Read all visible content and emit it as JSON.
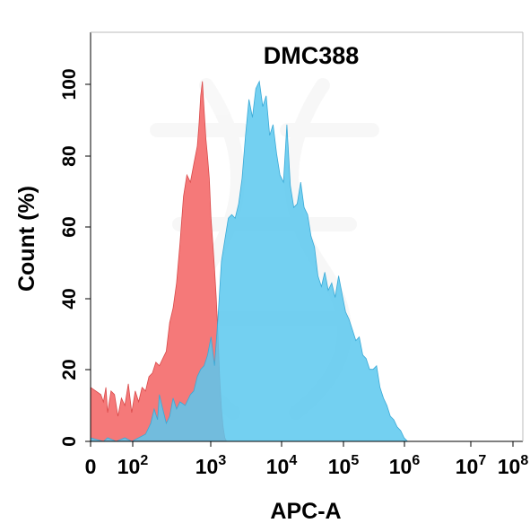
{
  "chart_data": {
    "type": "area",
    "title": "DMC388",
    "xlabel": "APC-A",
    "ylabel": "Count  (%)",
    "x_scale": "log (biexponential, 0 at left)",
    "ylim": [
      0,
      100
    ],
    "grid": false,
    "legend": "none",
    "y_ticks": [
      "0",
      "20",
      "40",
      "60",
      "80",
      "100"
    ],
    "x_ticks": [
      {
        "base": "0",
        "exp": ""
      },
      {
        "base": "10",
        "exp": "2"
      },
      {
        "base": "10",
        "exp": "3"
      },
      {
        "base": "10",
        "exp": "4"
      },
      {
        "base": "10",
        "exp": "5"
      },
      {
        "base": "10",
        "exp": "6"
      },
      {
        "base": "10",
        "exp": "7"
      },
      {
        "base": "10",
        "exp": "8"
      }
    ],
    "series": [
      {
        "color": "#f46a6a",
        "opacity": 0.9,
        "points": [
          [
            0,
            15
          ],
          [
            1.2,
            13
          ],
          [
            1.5,
            11
          ],
          [
            1.8,
            15
          ],
          [
            2.0,
            8
          ],
          [
            2.2,
            14
          ],
          [
            2.4,
            13
          ],
          [
            2.6,
            7
          ],
          [
            2.8,
            12
          ],
          [
            3.0,
            10
          ],
          [
            3.2,
            16
          ],
          [
            3.4,
            8
          ],
          [
            3.6,
            14
          ],
          [
            3.8,
            11
          ],
          [
            4.0,
            15
          ],
          [
            4.2,
            14
          ],
          [
            4.4,
            18
          ],
          [
            4.6,
            19
          ],
          [
            4.8,
            22
          ],
          [
            5.0,
            21
          ],
          [
            5.2,
            23
          ],
          [
            5.4,
            25
          ],
          [
            5.6,
            33
          ],
          [
            5.8,
            37
          ],
          [
            6.0,
            44
          ],
          [
            6.2,
            55
          ],
          [
            6.4,
            68
          ],
          [
            6.6,
            74
          ],
          [
            6.8,
            72
          ],
          [
            7.0,
            77
          ],
          [
            7.2,
            82
          ],
          [
            7.3,
            88
          ],
          [
            7.4,
            96
          ],
          [
            7.5,
            100
          ],
          [
            7.6,
            92
          ],
          [
            7.7,
            84
          ],
          [
            7.8,
            79
          ],
          [
            7.9,
            73
          ],
          [
            8.0,
            62
          ],
          [
            8.1,
            55
          ],
          [
            8.2,
            48
          ],
          [
            8.3,
            40
          ],
          [
            8.4,
            30
          ],
          [
            8.5,
            18
          ],
          [
            8.6,
            9
          ],
          [
            8.7,
            4
          ],
          [
            8.8,
            1
          ],
          [
            8.9,
            0
          ]
        ]
      },
      {
        "color": "#5bc8ef",
        "opacity": 0.85,
        "points": [
          [
            0,
            1
          ],
          [
            1.5,
            0
          ],
          [
            2.0,
            1
          ],
          [
            2.5,
            0
          ],
          [
            3.0,
            1
          ],
          [
            3.4,
            0
          ],
          [
            3.8,
            1
          ],
          [
            4.2,
            2
          ],
          [
            4.5,
            5
          ],
          [
            4.7,
            9
          ],
          [
            4.9,
            6
          ],
          [
            5.0,
            13
          ],
          [
            5.2,
            9
          ],
          [
            5.4,
            5
          ],
          [
            5.6,
            7
          ],
          [
            5.8,
            12
          ],
          [
            6.0,
            9
          ],
          [
            6.2,
            11
          ],
          [
            6.5,
            10
          ],
          [
            6.8,
            13
          ],
          [
            7.0,
            14
          ],
          [
            7.2,
            18
          ],
          [
            7.4,
            20
          ],
          [
            7.6,
            21
          ],
          [
            7.8,
            24
          ],
          [
            8.0,
            29
          ],
          [
            8.2,
            21
          ],
          [
            8.4,
            34
          ],
          [
            8.6,
            50
          ],
          [
            8.8,
            56
          ],
          [
            9.0,
            62
          ],
          [
            9.2,
            63
          ],
          [
            9.4,
            62
          ],
          [
            9.6,
            66
          ],
          [
            9.8,
            73
          ],
          [
            10.0,
            85
          ],
          [
            10.2,
            95
          ],
          [
            10.4,
            90
          ],
          [
            10.6,
            98
          ],
          [
            10.8,
            100
          ],
          [
            11.0,
            93
          ],
          [
            11.2,
            96
          ],
          [
            11.4,
            85
          ],
          [
            11.6,
            88
          ],
          [
            11.8,
            80
          ],
          [
            12.0,
            74
          ],
          [
            12.2,
            72
          ],
          [
            12.4,
            88
          ],
          [
            12.6,
            71
          ],
          [
            12.8,
            65
          ],
          [
            13.0,
            66
          ],
          [
            13.2,
            72
          ],
          [
            13.4,
            65
          ],
          [
            13.6,
            63
          ],
          [
            13.8,
            57
          ],
          [
            14.0,
            54
          ],
          [
            14.2,
            46
          ],
          [
            14.4,
            43
          ],
          [
            14.6,
            47
          ],
          [
            14.8,
            42
          ],
          [
            15.0,
            44
          ],
          [
            15.2,
            40
          ],
          [
            15.4,
            46
          ],
          [
            15.6,
            41
          ],
          [
            15.8,
            36
          ],
          [
            16.0,
            34
          ],
          [
            16.2,
            31
          ],
          [
            16.4,
            28
          ],
          [
            16.6,
            29
          ],
          [
            16.8,
            24
          ],
          [
            17.0,
            23
          ],
          [
            17.2,
            20
          ],
          [
            17.4,
            20
          ],
          [
            17.6,
            21
          ],
          [
            17.8,
            15
          ],
          [
            18.0,
            12
          ],
          [
            18.2,
            10
          ],
          [
            18.4,
            7
          ],
          [
            18.6,
            6
          ],
          [
            18.8,
            4
          ],
          [
            19.0,
            3
          ],
          [
            19.2,
            1
          ],
          [
            19.4,
            0
          ]
        ]
      }
    ]
  }
}
